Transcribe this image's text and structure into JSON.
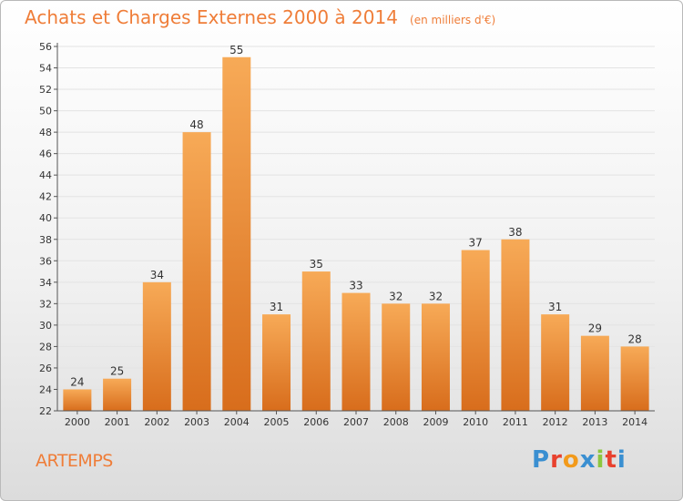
{
  "header": {
    "title": "Achats et Charges Externes 2000 à 2014",
    "subtitle": "(en milliers d'€)"
  },
  "footer": {
    "location": "ARTEMPS",
    "brand": "Proxiti",
    "brand_colors": [
      "#3a8fd1",
      "#e8412e",
      "#f29a1b",
      "#3a8fd1",
      "#8cc63f",
      "#e8412e",
      "#3a8fd1"
    ]
  },
  "colors": {
    "accent": "#ef7d38",
    "bar_top": "#f7aa57",
    "bar_bottom": "#d86d1c",
    "grid": "#e3e3e3",
    "axis": "#555555"
  },
  "chart_data": {
    "type": "bar",
    "title": "Achats et Charges Externes 2000 à 2014",
    "subtitle": "(en milliers d'€)",
    "categories": [
      "2000",
      "2001",
      "2002",
      "2003",
      "2004",
      "2005",
      "2006",
      "2007",
      "2008",
      "2009",
      "2010",
      "2011",
      "2012",
      "2013",
      "2014"
    ],
    "values": [
      24,
      25,
      34,
      48,
      55,
      31,
      35,
      33,
      32,
      32,
      37,
      38,
      31,
      29,
      28
    ],
    "ylim": [
      22,
      56
    ],
    "yticks": [
      22,
      24,
      26,
      28,
      30,
      32,
      34,
      36,
      38,
      40,
      42,
      44,
      46,
      48,
      50,
      52,
      54,
      56
    ],
    "grid": true,
    "data_labels": true,
    "xlabel": "",
    "ylabel": ""
  }
}
